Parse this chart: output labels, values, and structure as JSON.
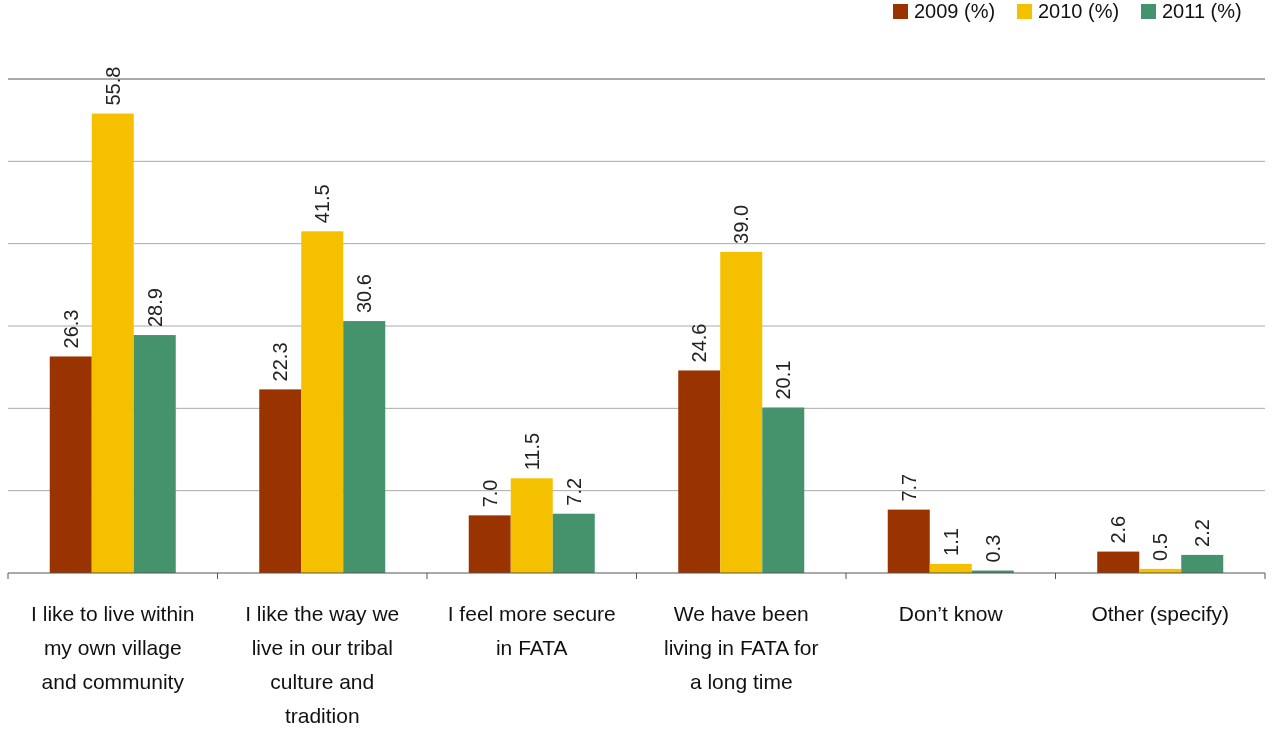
{
  "chart_data": {
    "type": "bar",
    "categories": [
      "I like to live within my own village and community",
      "I like the way we live in our tribal culture and tradition",
      "I feel more secure in FATA",
      "We have been living in FATA for a long time",
      "Don’t know",
      "Other (specify)"
    ],
    "series": [
      {
        "name": "2009 (%)",
        "color": "#993300",
        "values": [
          26.3,
          22.3,
          7.0,
          24.6,
          7.7,
          2.6
        ],
        "value_labels": [
          "26.3",
          "22.3",
          "7.0",
          "24.6",
          "7.7",
          "2.6"
        ]
      },
      {
        "name": "2010 (%)",
        "color": "#f5c000",
        "values": [
          55.8,
          41.5,
          11.5,
          39.0,
          1.1,
          0.5
        ],
        "value_labels": [
          "55.8",
          "41.5",
          "11.5",
          "39.0",
          "1.1",
          "0.5"
        ]
      },
      {
        "name": "2011 (%)",
        "color": "#45936c",
        "values": [
          28.9,
          30.6,
          7.2,
          20.1,
          0.3,
          2.2
        ],
        "value_labels": [
          "28.9",
          "30.6",
          "7.2",
          "20.1",
          "0.3",
          "2.2"
        ]
      }
    ],
    "ylim": [
      0,
      60
    ],
    "yticks": [
      {
        "value": 0,
        "label": null
      },
      {
        "value": 10,
        "label": null
      },
      {
        "value": 20,
        "label": null
      },
      {
        "value": 30,
        "label": null
      },
      {
        "value": 40,
        "label": null
      },
      {
        "value": 50,
        "label": null
      },
      {
        "value": 60,
        "label": null
      }
    ],
    "tick_labels": "x",
    "grid": "y",
    "legend": "top right"
  }
}
